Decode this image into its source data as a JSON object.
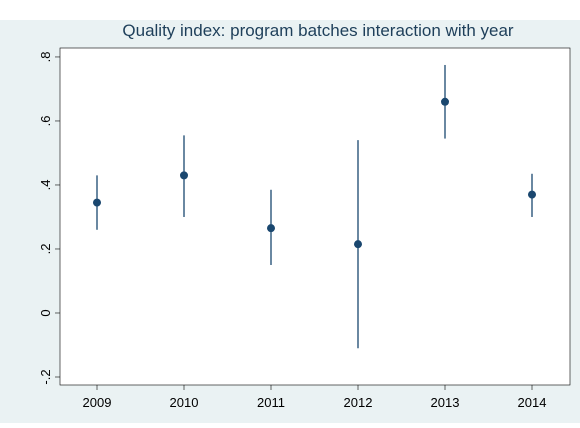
{
  "chart_data": {
    "type": "dot-errorbar",
    "title": "Quality index: program batches interaction with year",
    "categories": [
      "2009",
      "2010",
      "2011",
      "2012",
      "2013",
      "2014"
    ],
    "series": [
      {
        "color": "#1a476f",
        "values": [
          0.345,
          0.43,
          0.265,
          0.215,
          0.66,
          0.37
        ],
        "lower": [
          0.26,
          0.3,
          0.15,
          -0.11,
          0.545,
          0.3
        ],
        "upper": [
          0.43,
          0.555,
          0.385,
          0.54,
          0.775,
          0.435
        ]
      }
    ],
    "ylim": [
      -0.225,
      0.828
    ],
    "yticks": [
      {
        "value": -0.2,
        "label": "-.2"
      },
      0,
      {
        "value": 0.2,
        "label": ".2"
      },
      {
        "value": 0.4,
        "label": ".4"
      },
      {
        "value": 0.6,
        "label": ".6"
      },
      {
        "value": 0.8,
        "label": ".8"
      }
    ],
    "grid": false
  }
}
